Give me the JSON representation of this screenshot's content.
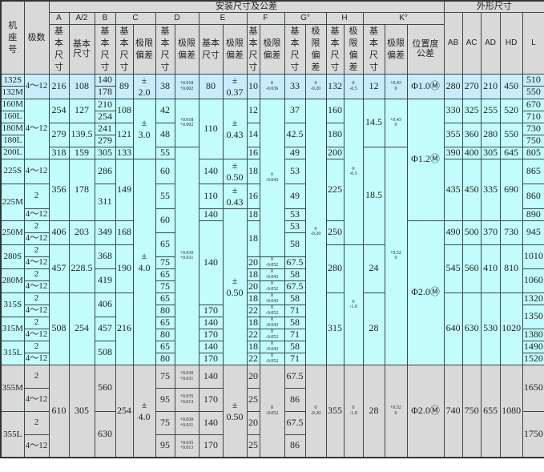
{
  "header": {
    "frame_no": "机座号",
    "poles": "极数",
    "install_group": "安装尺寸及公差",
    "outline_group": "外形尺寸",
    "cols": {
      "A": "A",
      "A2": "A/2",
      "B": "B",
      "C": "C",
      "D": "D",
      "E": "E",
      "F": "F",
      "G": "G°",
      "H": "H",
      "K": "K°",
      "AB": "AB",
      "AC": "AC",
      "AD": "AD",
      "HD": "HD",
      "L": "L"
    },
    "basic_size": "基本尺寸",
    "limit_dev": "极限偏差",
    "position_tol": "位置度公差"
  },
  "colors": {
    "header": "#d9d9d9",
    "section_132": "#c8ecfb",
    "section_160_315": "#c2fcfc",
    "section_355": "#d9d9d9"
  },
  "rows": [
    [
      "132S",
      "4～12",
      "216",
      "108",
      "140",
      "89",
      "±\n2.0",
      "38",
      "+0.018\n+0.002",
      "80",
      "±\n0.37",
      "10",
      "0\n-0.036",
      "33",
      "0\n-0.20",
      "132",
      "0\n-0.5",
      "12",
      "+0.43\n0",
      "Φ1.0Ⓜ",
      "280",
      "270",
      "210",
      "450",
      "510"
    ],
    [
      "132M",
      "178",
      "550"
    ],
    [
      "160M",
      "4～12",
      "254",
      "127",
      "210",
      "108",
      "±\n3.0",
      "42",
      "+0.018\n+0.002",
      "110",
      "±\n0.43",
      "12",
      "0\n-0.043",
      "37",
      "0\n-0.20",
      "160",
      "0\n-0.5",
      "14.5",
      "+0.43\n0",
      "Φ1.2Ⓜ",
      "330",
      "325",
      "255",
      "520",
      "670"
    ],
    [
      "160L",
      "254",
      "710"
    ],
    [
      "180M",
      "279",
      "139.5",
      "241",
      "121",
      "48",
      "14",
      "42.5",
      "180",
      "355",
      "360",
      "280",
      "550",
      "730"
    ],
    [
      "180L",
      "279",
      "750"
    ],
    [
      "200L",
      "318",
      "159",
      "305",
      "133",
      "55",
      "+0.030\n+0.011",
      "16",
      "49",
      "200",
      "18.5",
      "+0.52\n0",
      "390",
      "400",
      "305",
      "645",
      "805"
    ],
    [
      "225S",
      "4～12",
      "356",
      "178",
      "286",
      "149",
      "±\n4.0",
      "60",
      "140",
      "±\n0.50",
      "18",
      "53",
      "225",
      "435",
      "450",
      "335",
      "690",
      "865"
    ],
    [
      "225M",
      "2",
      "311",
      "55",
      "110",
      "±\n0.43",
      "16",
      "49",
      "860"
    ],
    [
      "4～12",
      "60",
      "140",
      "±\n0.50",
      "18",
      "53",
      "890"
    ],
    [
      "250M",
      "2",
      "406",
      "203",
      "349",
      "168",
      "140",
      "18",
      "53",
      "250",
      "Φ2.0Ⓜ",
      "490",
      "500",
      "370",
      "730",
      "945"
    ],
    [
      "4～12",
      "65",
      "58"
    ],
    [
      "280S",
      "2",
      "457",
      "228.5",
      "368",
      "190",
      "280",
      "0\n-1.0",
      "24",
      "545",
      "560",
      "410",
      "810",
      "1010"
    ],
    [
      "4～12",
      "75",
      "20",
      "0\n-0.052",
      "67.5"
    ],
    [
      "280M",
      "2",
      "419",
      "65",
      "18",
      "0\n-0.043",
      "58",
      "1060"
    ],
    [
      "4～12",
      "75",
      "20",
      "0\n-0.052",
      "67.5"
    ],
    [
      "315S",
      "2",
      "508",
      "254",
      "406",
      "216",
      "65",
      "18",
      "0\n-0.043",
      "58",
      "315",
      "28",
      "640",
      "630",
      "530",
      "1020",
      "1320"
    ],
    [
      "4～12",
      "80",
      "170",
      "22",
      "0\n-0.052",
      "71",
      "1350"
    ],
    [
      "315M",
      "2",
      "457",
      "65",
      "140",
      "18",
      "0\n-0.043",
      "58"
    ],
    [
      "4～12",
      "80",
      "170",
      "22",
      "0\n-0.052",
      "71",
      "1380"
    ],
    [
      "315L",
      "2",
      "508",
      "65",
      "140",
      "18",
      "0\n-0.043",
      "58",
      "1490"
    ],
    [
      "4～12",
      "80",
      "170",
      "22",
      "0\n-0.052",
      "71",
      "1520"
    ],
    [
      "355M",
      "2",
      "610",
      "305",
      "560",
      "254",
      "±\n4.0",
      "75",
      "+0.030\n+0.011",
      "140",
      "±\n0.50",
      "20",
      "0\n-0.052",
      "67.5",
      "0\n-0.20",
      "355",
      "0\n-1.0",
      "28",
      "+0.52\n0",
      "Φ2.0Ⓜ",
      "740",
      "750",
      "655",
      "1080",
      "1650"
    ],
    [
      "4～12",
      "95",
      "+0.035\n+0.013",
      "170",
      "25",
      "86"
    ],
    [
      "355L",
      "2",
      "630",
      "75",
      "+0.030\n+0.011",
      "140",
      "20",
      "67.5",
      "1750"
    ],
    [
      "4～12",
      "95",
      "+0.035\n+0.013",
      "170",
      "25",
      "86"
    ]
  ]
}
